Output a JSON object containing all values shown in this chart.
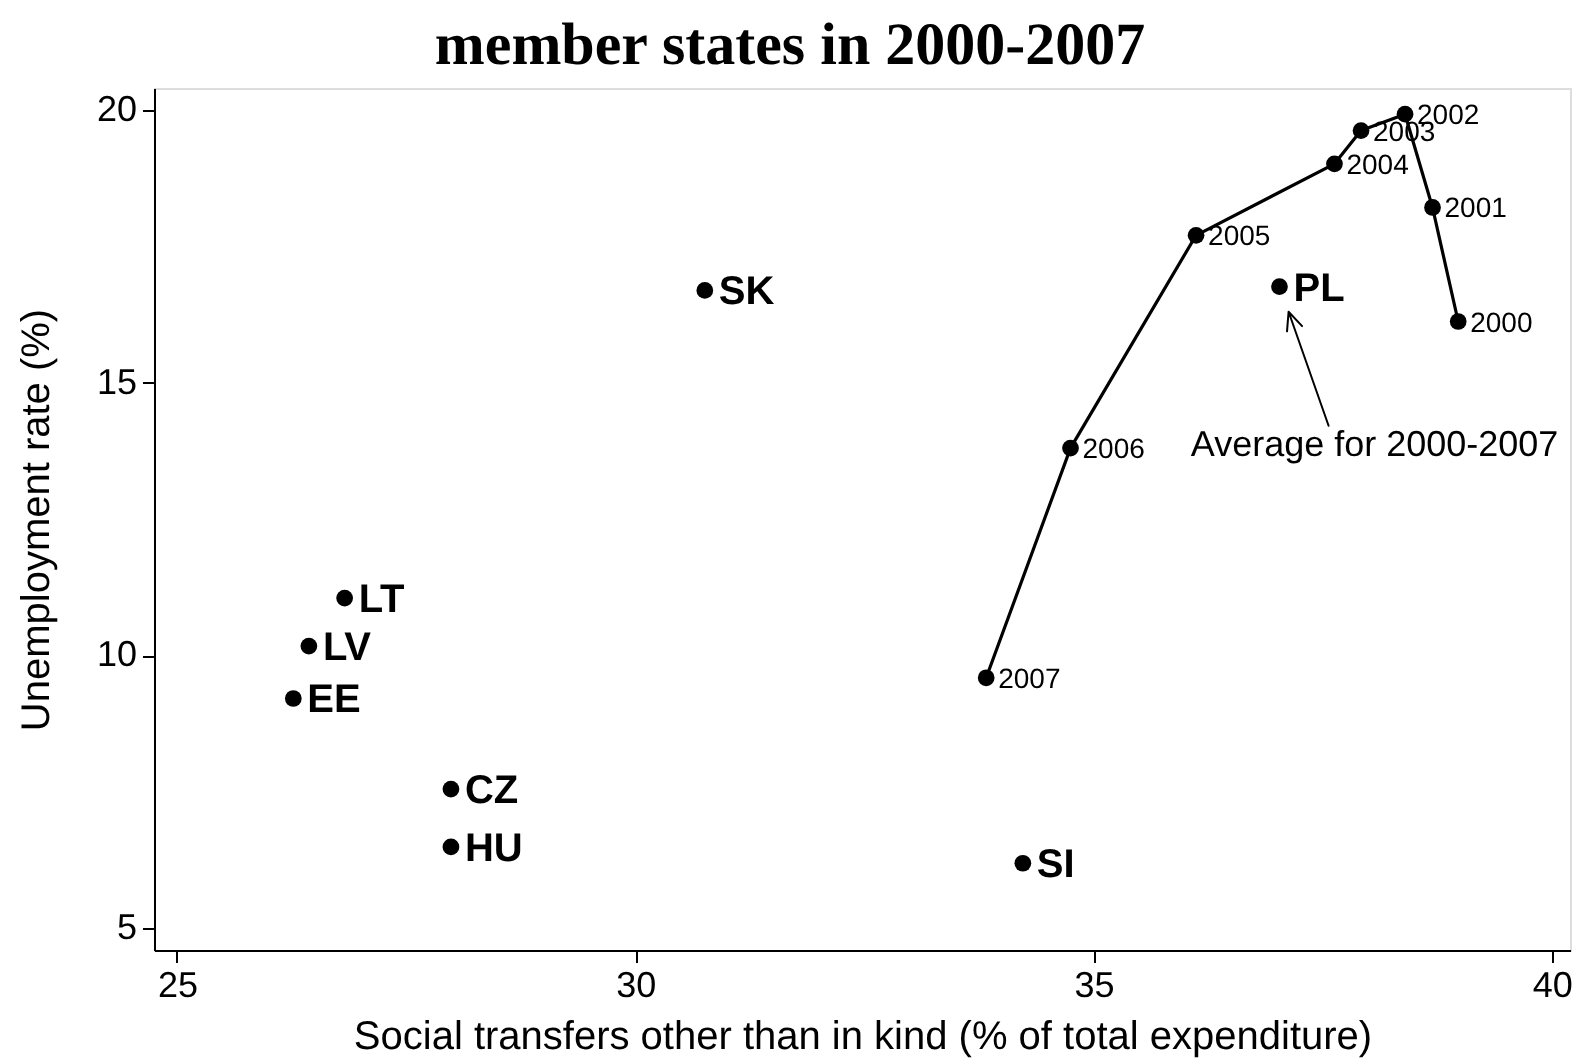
{
  "chart_data": {
    "type": "scatter",
    "title": "member states in 2000-2007",
    "xlabel": "Social transfers other than in kind (% of total expenditure)",
    "ylabel": "Unemployment rate (%)",
    "xlim": [
      24.75,
      40.2
    ],
    "ylim": [
      4.6,
      20.4
    ],
    "xticks": [
      25,
      30,
      35,
      40
    ],
    "yticks": [
      5,
      10,
      15,
      20
    ],
    "grid": false,
    "marker": "circle",
    "series": [
      {
        "name": "SK",
        "x": [
          30.76
        ],
        "values": [
          16.69
        ],
        "color": "#000000"
      },
      {
        "name": "LT",
        "x": [
          26.83
        ],
        "values": [
          11.05
        ],
        "color": "#000000"
      },
      {
        "name": "LV",
        "x": [
          26.44
        ],
        "values": [
          10.17
        ],
        "color": "#000000"
      },
      {
        "name": "EE",
        "x": [
          26.27
        ],
        "values": [
          9.21
        ],
        "color": "#000000"
      },
      {
        "name": "CZ",
        "x": [
          27.99
        ],
        "values": [
          7.55
        ],
        "color": "#000000"
      },
      {
        "name": "HU",
        "x": [
          27.99
        ],
        "values": [
          6.49
        ],
        "color": "#000000"
      },
      {
        "name": "SI",
        "x": [
          34.23
        ],
        "values": [
          6.19
        ],
        "color": "#000000"
      },
      {
        "name": "PL",
        "x": [
          37.03
        ],
        "values": [
          16.76
        ],
        "color": "#000000"
      },
      {
        "type": "line",
        "x": [
          38.98,
          38.7,
          38.4,
          37.92,
          37.63,
          36.12,
          34.75,
          33.83
        ],
        "values": [
          16.12,
          18.21,
          19.92,
          19.62,
          19.01,
          17.7,
          13.8,
          9.59
        ],
        "color": "#000000"
      }
    ],
    "annotations": [
      {
        "text": "2000",
        "x": 38.98,
        "y": 16.12
      },
      {
        "text": "2001",
        "x": 38.7,
        "y": 18.21
      },
      {
        "text": "2002",
        "x": 38.4,
        "y": 19.92
      },
      {
        "text": "2003",
        "x": 37.92,
        "y": 19.62
      },
      {
        "text": "2004",
        "x": 37.63,
        "y": 19.01
      },
      {
        "text": "2005",
        "x": 36.12,
        "y": 17.7
      },
      {
        "text": "2006",
        "x": 34.75,
        "y": 13.8
      },
      {
        "text": "2007",
        "x": 33.83,
        "y": 9.59
      },
      "Average for 2000-2007"
    ]
  }
}
